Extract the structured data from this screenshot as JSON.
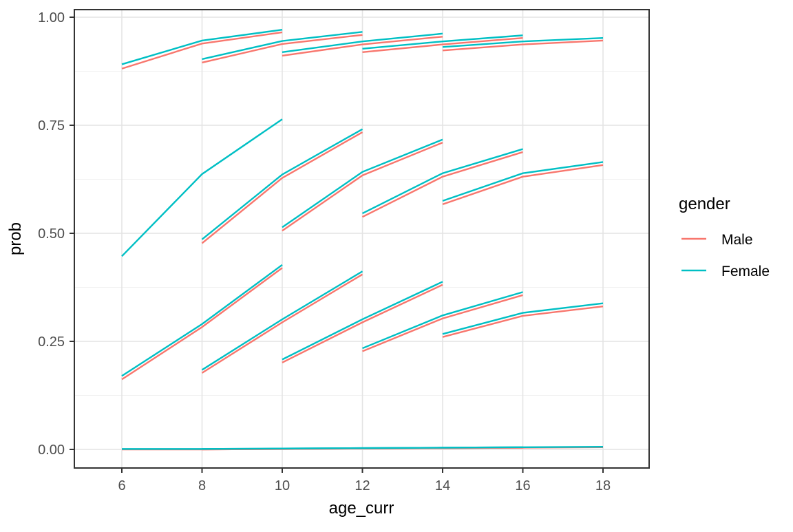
{
  "figure": {
    "background": "#FFFFFF",
    "panel_border_color": "#333333",
    "grid_major_color": "#E4E4E4",
    "grid_minor_color": "#F1F1F1",
    "tick_mark_color": "#333333",
    "tick_label_color": "#4D4D4D"
  },
  "axes": {
    "x": {
      "label": "age_curr",
      "ticks": [
        6,
        8,
        10,
        12,
        14,
        16,
        18
      ],
      "tick_labels": [
        "6",
        "8",
        "10",
        "12",
        "14",
        "16",
        "18"
      ]
    },
    "y": {
      "label": "prob",
      "ticks": [
        0.0,
        0.25,
        0.5,
        0.75,
        1.0
      ],
      "tick_labels": [
        "0.00",
        "0.25",
        "0.50",
        "0.75",
        "1.00"
      ],
      "minor_ticks": [
        0.125,
        0.375,
        0.625,
        0.875
      ]
    }
  },
  "legend": {
    "title": "gender",
    "items": [
      {
        "label": "Male",
        "color": "#F8766D"
      },
      {
        "label": "Female",
        "color": "#00BFC4"
      }
    ]
  },
  "chart_data": {
    "type": "line",
    "title": "",
    "xlabel": "age_curr",
    "ylabel": "prob",
    "xlim": [
      4.8,
      19.2
    ],
    "ylim": [
      -0.04,
      1.02
    ],
    "x_ticks": [
      6,
      8,
      10,
      12,
      14,
      16,
      18
    ],
    "y_ticks": [
      0.0,
      0.25,
      0.5,
      0.75,
      1.0
    ],
    "grid": "major-and-horizontal-minor",
    "legend_position": "right",
    "series_colors": {
      "Male": "#F8766D",
      "Female": "#00BFC4"
    },
    "segments": [
      {
        "band": "top",
        "cohort": 1,
        "ages": [
          6,
          8,
          10
        ],
        "Female": [
          0.891,
          0.946,
          0.971
        ],
        "Male": [
          0.881,
          0.939,
          0.965
        ]
      },
      {
        "band": "top",
        "cohort": 2,
        "ages": [
          8,
          10,
          12
        ],
        "Female": [
          0.903,
          0.945,
          0.966
        ],
        "Male": [
          0.895,
          0.938,
          0.959
        ]
      },
      {
        "band": "top",
        "cohort": 3,
        "ages": [
          10,
          12,
          14
        ],
        "Female": [
          0.919,
          0.944,
          0.962
        ],
        "Male": [
          0.911,
          0.937,
          0.955
        ]
      },
      {
        "band": "top",
        "cohort": 4,
        "ages": [
          12,
          14,
          16
        ],
        "Female": [
          0.927,
          0.944,
          0.958
        ],
        "Male": [
          0.919,
          0.937,
          0.952
        ]
      },
      {
        "band": "top",
        "cohort": 5,
        "ages": [
          14,
          16,
          18
        ],
        "Female": [
          0.931,
          0.944,
          0.952
        ],
        "Male": [
          0.923,
          0.937,
          0.946
        ]
      },
      {
        "band": "middle",
        "cohort": 1,
        "ages": [
          6,
          8,
          10
        ],
        "Female": [
          0.447,
          0.637,
          0.764
        ],
        "Male": null
      },
      {
        "band": "middle",
        "cohort": 2,
        "ages": [
          8,
          10,
          12
        ],
        "Female": [
          0.486,
          0.636,
          0.741
        ],
        "Male": [
          0.477,
          0.628,
          0.734
        ]
      },
      {
        "band": "middle",
        "cohort": 3,
        "ages": [
          10,
          12,
          14
        ],
        "Female": [
          0.514,
          0.642,
          0.717
        ],
        "Male": [
          0.506,
          0.634,
          0.71
        ]
      },
      {
        "band": "middle",
        "cohort": 4,
        "ages": [
          12,
          14,
          16
        ],
        "Female": [
          0.546,
          0.639,
          0.695
        ],
        "Male": [
          0.538,
          0.631,
          0.688
        ]
      },
      {
        "band": "middle",
        "cohort": 5,
        "ages": [
          14,
          16,
          18
        ],
        "Female": [
          0.575,
          0.639,
          0.665
        ],
        "Male": [
          0.567,
          0.631,
          0.658
        ]
      },
      {
        "band": "lower",
        "cohort": 1,
        "ages": [
          6,
          8,
          10
        ],
        "Female": [
          0.17,
          0.29,
          0.427
        ],
        "Male": [
          0.162,
          0.283,
          0.42
        ]
      },
      {
        "band": "lower",
        "cohort": 2,
        "ages": [
          8,
          10,
          12
        ],
        "Female": [
          0.184,
          0.301,
          0.412
        ],
        "Male": [
          0.177,
          0.294,
          0.405
        ]
      },
      {
        "band": "lower",
        "cohort": 3,
        "ages": [
          10,
          12,
          14
        ],
        "Female": [
          0.208,
          0.301,
          0.388
        ],
        "Male": [
          0.201,
          0.294,
          0.381
        ]
      },
      {
        "band": "lower",
        "cohort": 4,
        "ages": [
          12,
          14,
          16
        ],
        "Female": [
          0.234,
          0.31,
          0.364
        ],
        "Male": [
          0.227,
          0.303,
          0.357
        ]
      },
      {
        "band": "lower",
        "cohort": 5,
        "ages": [
          14,
          16,
          18
        ],
        "Female": [
          0.267,
          0.316,
          0.338
        ],
        "Male": [
          0.26,
          0.309,
          0.331
        ]
      },
      {
        "band": "bottom",
        "cohort": 1,
        "ages": [
          6,
          8,
          10
        ],
        "Female": [
          0.001,
          0.001,
          0.002
        ],
        "Male": [
          0.0,
          0.0,
          0.001
        ]
      },
      {
        "band": "bottom",
        "cohort": 2,
        "ages": [
          8,
          10,
          12
        ],
        "Female": [
          0.001,
          0.002,
          0.003
        ],
        "Male": [
          0.0,
          0.001,
          0.002
        ]
      },
      {
        "band": "bottom",
        "cohort": 3,
        "ages": [
          10,
          12,
          14
        ],
        "Female": [
          0.002,
          0.003,
          0.004
        ],
        "Male": [
          0.001,
          0.002,
          0.003
        ]
      },
      {
        "band": "bottom",
        "cohort": 4,
        "ages": [
          12,
          14,
          16
        ],
        "Female": [
          0.003,
          0.004,
          0.005
        ],
        "Male": [
          0.002,
          0.003,
          0.004
        ]
      },
      {
        "band": "bottom",
        "cohort": 5,
        "ages": [
          14,
          16,
          18
        ],
        "Female": [
          0.004,
          0.005,
          0.006
        ],
        "Male": [
          0.003,
          0.004,
          0.005
        ]
      }
    ]
  }
}
